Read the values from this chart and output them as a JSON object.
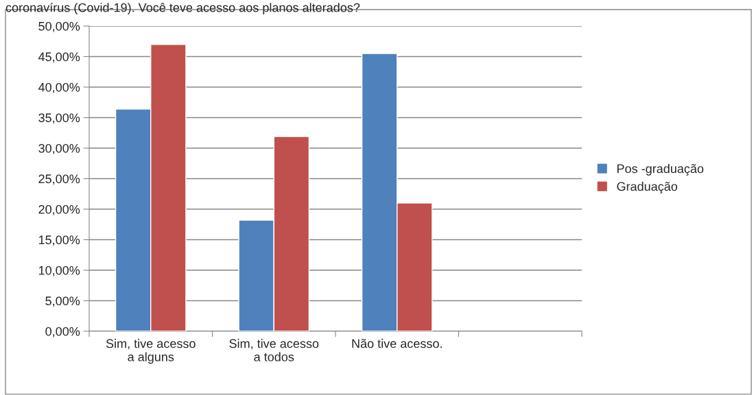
{
  "chart_data": {
    "type": "bar",
    "title": "coronavírus (Covid-19). Você teve acesso aos planos alterados?",
    "categories": [
      "Sim, tive acesso\na alguns",
      "Sim, tive acesso\na todos",
      "Não tive acesso.",
      null
    ],
    "series": [
      {
        "name": "Pos -graduação",
        "color": "#4f81bd",
        "values": [
          36.4,
          18.2,
          45.5,
          null
        ]
      },
      {
        "name": "Graduação",
        "color": "#c0504d",
        "values": [
          47.0,
          31.9,
          21.0,
          null
        ]
      }
    ],
    "ylim": [
      0,
      50
    ],
    "yticks": [
      {
        "value": 0,
        "label": "0,00%"
      },
      {
        "value": 5,
        "label": "5,00%"
      },
      {
        "value": 10,
        "label": "10,00%"
      },
      {
        "value": 15,
        "label": "15,00%"
      },
      {
        "value": 20,
        "label": "20,00%"
      },
      {
        "value": 25,
        "label": "25,00%"
      },
      {
        "value": 30,
        "label": "30,00%"
      },
      {
        "value": 35,
        "label": "35,00%"
      },
      {
        "value": 40,
        "label": "40,00%"
      },
      {
        "value": 45,
        "label": "45,00%"
      },
      {
        "value": 50,
        "label": "50,00%"
      }
    ],
    "grid": "y",
    "legend": "right"
  }
}
